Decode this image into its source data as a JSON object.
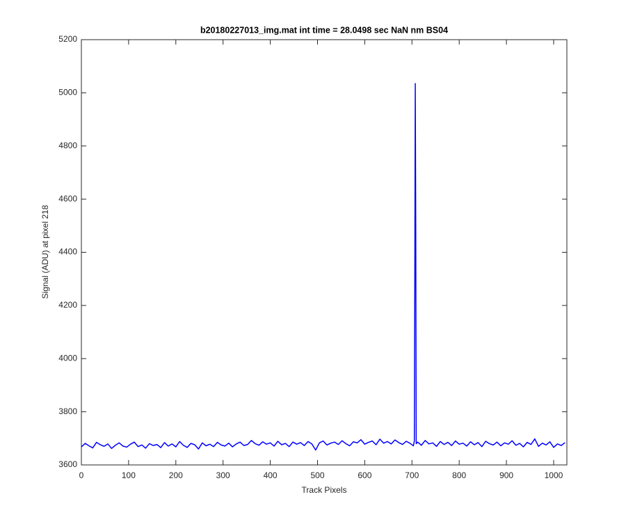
{
  "chart_data": {
    "type": "line",
    "title": "b20180227013_img.mat int time = 28.0498 sec  NaN nm BS04",
    "x_label": "Track Pixels",
    "y_label": "Signal (ADU) at pixel 218",
    "x": [
      0,
      8,
      16,
      24,
      32,
      40,
      48,
      56,
      64,
      72,
      80,
      88,
      96,
      104,
      112,
      120,
      128,
      136,
      144,
      152,
      160,
      168,
      176,
      184,
      192,
      200,
      208,
      216,
      224,
      232,
      240,
      248,
      256,
      264,
      272,
      280,
      288,
      296,
      304,
      312,
      320,
      328,
      336,
      344,
      352,
      360,
      368,
      376,
      384,
      392,
      400,
      408,
      416,
      424,
      432,
      440,
      448,
      456,
      464,
      472,
      480,
      488,
      496,
      504,
      512,
      520,
      528,
      536,
      544,
      552,
      560,
      568,
      576,
      584,
      592,
      600,
      608,
      616,
      624,
      632,
      640,
      648,
      656,
      664,
      672,
      680,
      688,
      696,
      703,
      705,
      706,
      707,
      708,
      709,
      712,
      720,
      728,
      736,
      744,
      752,
      760,
      768,
      776,
      784,
      792,
      800,
      808,
      816,
      824,
      832,
      840,
      848,
      856,
      864,
      872,
      880,
      888,
      896,
      904,
      912,
      920,
      928,
      936,
      944,
      952,
      960,
      968,
      976,
      984,
      992,
      1000,
      1008,
      1016,
      1024
    ],
    "series": [
      {
        "color": "#0000ff",
        "values": [
          3668,
          3681,
          3672,
          3664,
          3685,
          3676,
          3670,
          3679,
          3662,
          3674,
          3683,
          3671,
          3667,
          3678,
          3686,
          3669,
          3675,
          3663,
          3680,
          3673,
          3677,
          3665,
          3684,
          3671,
          3679,
          3668,
          3688,
          3674,
          3666,
          3681,
          3676,
          3660,
          3683,
          3672,
          3678,
          3669,
          3685,
          3675,
          3671,
          3682,
          3668,
          3679,
          3686,
          3673,
          3677,
          3692,
          3680,
          3674,
          3687,
          3678,
          3683,
          3671,
          3689,
          3676,
          3681,
          3669,
          3686,
          3678,
          3684,
          3673,
          3688,
          3679,
          3656,
          3683,
          3690,
          3675,
          3682,
          3686,
          3677,
          3691,
          3680,
          3672,
          3687,
          3683,
          3695,
          3678,
          3685,
          3690,
          3676,
          3697,
          3682,
          3688,
          3679,
          3694,
          3684,
          3677,
          3689,
          3681,
          3672,
          3690,
          4300,
          5035,
          4500,
          3680,
          3686,
          3674,
          3692,
          3679,
          3683,
          3670,
          3688,
          3677,
          3685,
          3673,
          3690,
          3678,
          3682,
          3671,
          3687,
          3676,
          3684,
          3669,
          3689,
          3680,
          3675,
          3686,
          3672,
          3683,
          3678,
          3691,
          3674,
          3681,
          3668,
          3685,
          3677,
          3698,
          3670,
          3682,
          3675,
          3687,
          3666,
          3679,
          3673,
          3684
        ]
      }
    ],
    "xlim": [
      0,
      1028
    ],
    "xticks": [
      0,
      100,
      200,
      300,
      400,
      500,
      600,
      700,
      800,
      900,
      1000
    ],
    "ylim": [
      3600,
      5200
    ],
    "yticks": [
      3600,
      3800,
      4000,
      4200,
      4400,
      4600,
      4800,
      5000,
      5200
    ],
    "grid": false
  }
}
